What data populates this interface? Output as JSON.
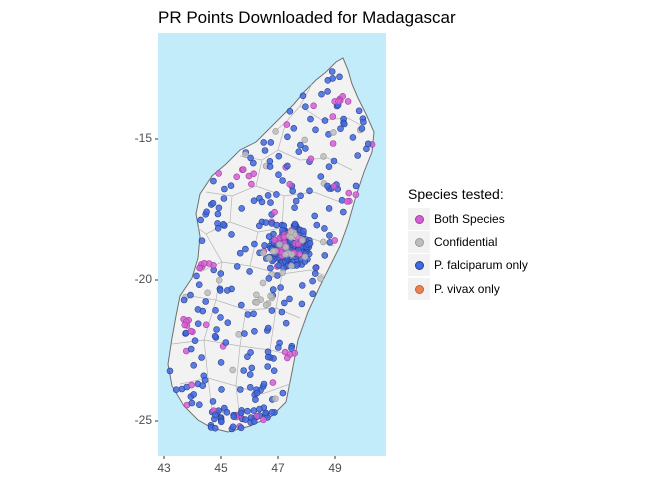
{
  "title": "PR Points Downloaded for Madagascar",
  "map": {
    "region": "Madagascar",
    "ocean_color": "#c3ecfb",
    "land_color": "#f2f2f2",
    "border_color": "#b0b0b0",
    "coast_color": "#707070"
  },
  "axes": {
    "x_ticks": [
      "43",
      "45",
      "47",
      "49"
    ],
    "y_ticks": [
      "-15",
      "-20",
      "-25"
    ]
  },
  "legend": {
    "title": "Species tested:",
    "items": [
      {
        "label": "Both Species",
        "color": "#d65fd3"
      },
      {
        "label": "Confidential",
        "color": "#bdbdbd"
      },
      {
        "label": "P. falciparum only",
        "color": "#4169e1"
      },
      {
        "label": "P. vivax only",
        "color": "#f08050"
      }
    ]
  }
}
